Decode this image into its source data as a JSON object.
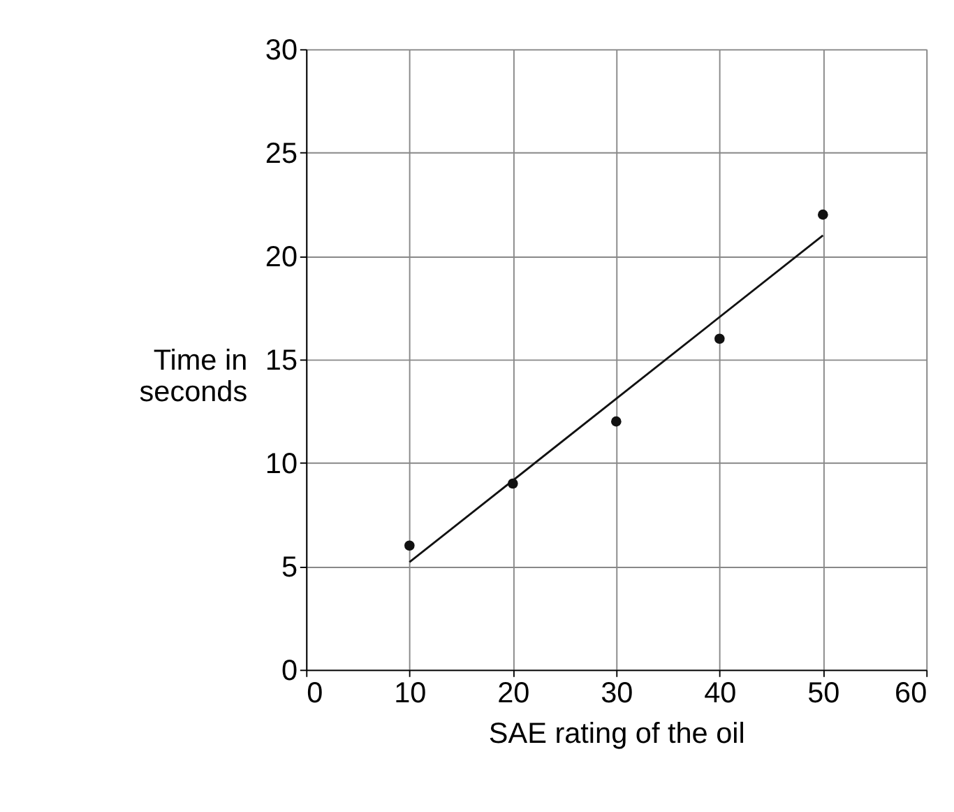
{
  "chart_data": {
    "type": "scatter",
    "xlabel": "SAE rating of the oil",
    "ylabel": "Time in\nseconds",
    "xlim": [
      0,
      60
    ],
    "xticks": [
      0,
      10,
      20,
      30,
      40,
      50,
      60
    ],
    "ylim": [
      0,
      30
    ],
    "yticks": [
      0,
      5,
      10,
      15,
      20,
      25,
      30
    ],
    "grid": true,
    "marker": "circle",
    "series": [
      {
        "color": "#111111",
        "x": [
          10,
          20,
          30,
          40,
          50
        ],
        "values": [
          6,
          9,
          12,
          16,
          22
        ]
      },
      {
        "type": "line",
        "color": "#111111",
        "x": [
          10,
          50
        ],
        "values": [
          5.2,
          21
        ],
        "line_style": "solid",
        "marker": "none"
      }
    ]
  }
}
